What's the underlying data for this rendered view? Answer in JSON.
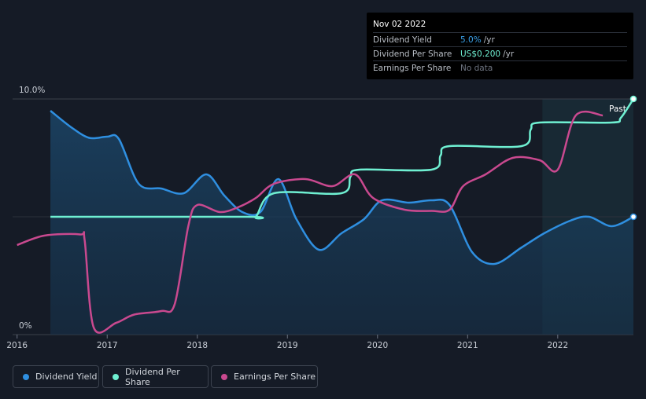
{
  "tooltip": {
    "date": "Nov 02 2022",
    "rows": [
      {
        "label": "Dividend Yield",
        "value": "5.0%",
        "unit": "/yr",
        "color": "#3aa0e8"
      },
      {
        "label": "Dividend Per Share",
        "value": "US$0.200",
        "unit": "/yr",
        "color": "#6ff0d2"
      },
      {
        "label": "Earnings Per Share",
        "value": "No data",
        "unit": "",
        "color": "#6e7480"
      }
    ]
  },
  "legend": [
    {
      "label": "Dividend Yield",
      "color": "#2f8fe0"
    },
    {
      "label": "Dividend Per Share",
      "color": "#6ff0d2"
    },
    {
      "label": "Earnings Per Share",
      "color": "#c9498f"
    }
  ],
  "chart_data": {
    "type": "line",
    "y_top_label": "10.0%",
    "y_bottom_label": "0%",
    "ylim": [
      0,
      10
    ],
    "xlim": [
      2015.95,
      2022.84
    ],
    "x_ticks": [
      "2016",
      "2017",
      "2018",
      "2019",
      "2020",
      "2021",
      "2022"
    ],
    "past_label": "Past",
    "past_region_start": 2021.83,
    "grid": "horizontal",
    "series": [
      {
        "name": "Dividend Yield",
        "color": "#2f8fe0",
        "fill": true,
        "points": [
          [
            2016.37,
            9.5
          ],
          [
            2016.6,
            8.8
          ],
          [
            2016.8,
            8.35
          ],
          [
            2017.0,
            8.4
          ],
          [
            2017.13,
            8.3
          ],
          [
            2017.35,
            6.4
          ],
          [
            2017.6,
            6.2
          ],
          [
            2017.85,
            6.0
          ],
          [
            2018.1,
            6.8
          ],
          [
            2018.3,
            5.9
          ],
          [
            2018.5,
            5.2
          ],
          [
            2018.7,
            5.2
          ],
          [
            2018.9,
            6.6
          ],
          [
            2019.1,
            4.9
          ],
          [
            2019.35,
            3.6
          ],
          [
            2019.6,
            4.3
          ],
          [
            2019.85,
            4.9
          ],
          [
            2020.05,
            5.7
          ],
          [
            2020.35,
            5.6
          ],
          [
            2020.6,
            5.7
          ],
          [
            2020.8,
            5.5
          ],
          [
            2021.05,
            3.5
          ],
          [
            2021.3,
            3.0
          ],
          [
            2021.6,
            3.7
          ],
          [
            2021.85,
            4.3
          ],
          [
            2022.15,
            4.85
          ],
          [
            2022.35,
            5.0
          ],
          [
            2022.6,
            4.6
          ],
          [
            2022.84,
            5.0
          ]
        ]
      },
      {
        "name": "Dividend Per Share",
        "color": "#6ff0d2",
        "fill": false,
        "points": [
          [
            2016.37,
            5.0
          ],
          [
            2018.55,
            5.0
          ],
          [
            2018.65,
            5.0
          ],
          [
            2018.85,
            6.0
          ],
          [
            2019.6,
            6.0
          ],
          [
            2019.7,
            6.7
          ],
          [
            2019.8,
            7.0
          ],
          [
            2020.6,
            7.0
          ],
          [
            2020.7,
            7.6
          ],
          [
            2020.8,
            8.0
          ],
          [
            2021.6,
            8.0
          ],
          [
            2021.7,
            8.7
          ],
          [
            2021.8,
            9.0
          ],
          [
            2022.6,
            9.0
          ],
          [
            2022.7,
            9.2
          ],
          [
            2022.84,
            10.0
          ]
        ]
      },
      {
        "name": "Earnings Per Share",
        "color": "#c9498f",
        "fill": false,
        "points": [
          [
            2016.0,
            3.8
          ],
          [
            2016.3,
            4.2
          ],
          [
            2016.7,
            4.25
          ],
          [
            2016.75,
            4.0
          ],
          [
            2016.85,
            0.3
          ],
          [
            2017.1,
            0.5
          ],
          [
            2017.3,
            0.85
          ],
          [
            2017.6,
            1.0
          ],
          [
            2017.75,
            1.3
          ],
          [
            2017.9,
            4.6
          ],
          [
            2018.0,
            5.5
          ],
          [
            2018.25,
            5.2
          ],
          [
            2018.45,
            5.4
          ],
          [
            2018.65,
            5.8
          ],
          [
            2018.85,
            6.4
          ],
          [
            2019.2,
            6.6
          ],
          [
            2019.5,
            6.3
          ],
          [
            2019.75,
            6.8
          ],
          [
            2019.95,
            5.8
          ],
          [
            2020.3,
            5.3
          ],
          [
            2020.6,
            5.25
          ],
          [
            2020.8,
            5.3
          ],
          [
            2020.95,
            6.3
          ],
          [
            2021.2,
            6.8
          ],
          [
            2021.5,
            7.5
          ],
          [
            2021.8,
            7.4
          ],
          [
            2022.0,
            7.0
          ],
          [
            2022.2,
            9.3
          ],
          [
            2022.5,
            9.3
          ]
        ]
      }
    ]
  }
}
